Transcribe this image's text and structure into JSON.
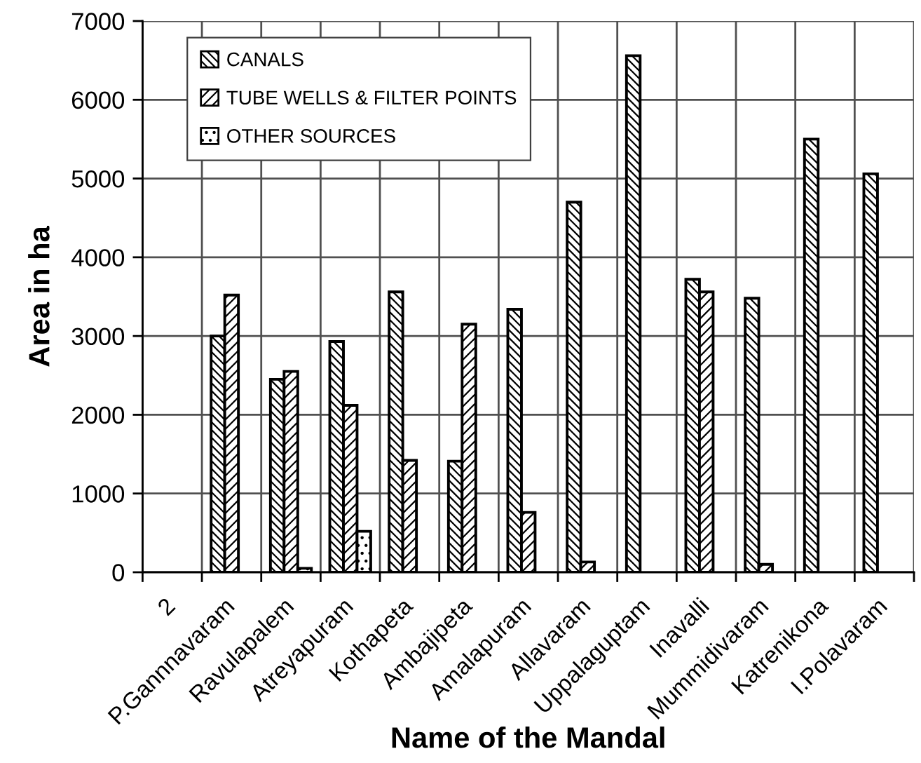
{
  "chart_data": {
    "type": "bar",
    "xlabel": "Name of the Mandal",
    "ylabel": "Area in ha",
    "categories": [
      "2",
      "P.Gannnavaram",
      "Ravulapalem",
      "Atreyapuram",
      "Kothapeta",
      "Ambajipeta",
      "Amalapuram",
      "Allavaram",
      "Uppalaguptam",
      "Inavalli",
      "Mummidivaram",
      "Katrenikona",
      "I.Polavaram"
    ],
    "series": [
      {
        "name": "CANALS",
        "color": "#000000",
        "values": [
          null,
          3000,
          2450,
          2930,
          3560,
          1410,
          3340,
          4700,
          6560,
          3720,
          3480,
          5500,
          5060
        ]
      },
      {
        "name": "TUBE WELLS & FILTER POINTS",
        "color": "#000000",
        "values": [
          null,
          3520,
          2550,
          2120,
          1420,
          3150,
          760,
          130,
          null,
          3560,
          100,
          null,
          null
        ]
      },
      {
        "name": "OTHER SOURCES",
        "color": "#000000",
        "values": [
          null,
          null,
          50,
          520,
          null,
          null,
          null,
          null,
          null,
          null,
          null,
          null,
          null
        ]
      }
    ],
    "ylim": [
      0,
      7000
    ],
    "yticks": [
      0,
      1000,
      2000,
      3000,
      4000,
      5000,
      6000,
      7000
    ],
    "grid": true,
    "legend": "top left"
  }
}
